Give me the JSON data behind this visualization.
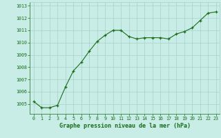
{
  "x": [
    0,
    1,
    2,
    3,
    4,
    5,
    6,
    7,
    8,
    9,
    10,
    11,
    12,
    13,
    14,
    15,
    16,
    17,
    18,
    19,
    20,
    21,
    22,
    23
  ],
  "y": [
    1005.2,
    1004.7,
    1004.7,
    1004.9,
    1006.4,
    1007.7,
    1008.4,
    1009.3,
    1010.1,
    1010.6,
    1011.0,
    1011.0,
    1010.5,
    1010.3,
    1010.4,
    1010.4,
    1010.4,
    1010.3,
    1010.7,
    1010.9,
    1011.2,
    1011.8,
    1012.4,
    1012.5
  ],
  "line_color": "#1a6b1a",
  "marker_color": "#1a6b1a",
  "bg_color": "#c8ede6",
  "grid_color": "#a8cfc8",
  "xlabel": "Graphe pression niveau de la mer (hPa)",
  "xlabel_color": "#1a6b1a",
  "tick_color": "#1a6b1a",
  "ylim_min": 1004.2,
  "ylim_max": 1013.3,
  "yticks": [
    1005,
    1006,
    1007,
    1008,
    1009,
    1010,
    1011,
    1012,
    1013
  ],
  "xticks": [
    0,
    1,
    2,
    3,
    4,
    5,
    6,
    7,
    8,
    9,
    10,
    11,
    12,
    13,
    14,
    15,
    16,
    17,
    18,
    19,
    20,
    21,
    22,
    23
  ]
}
